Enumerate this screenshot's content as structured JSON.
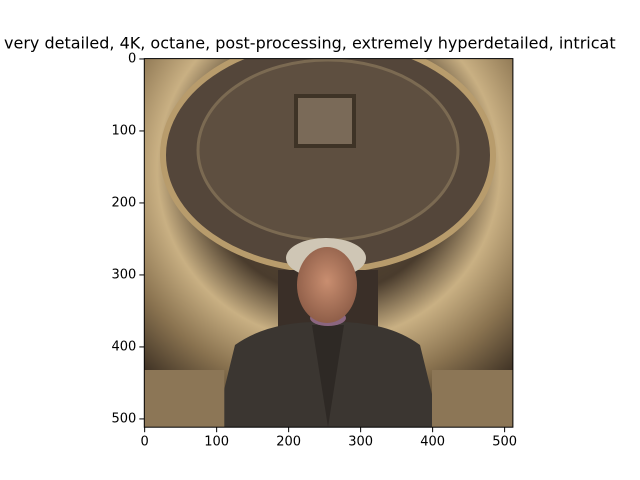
{
  "chart_data": {
    "type": "image",
    "title": "very detailed, 4K, octane, post-processing, extremely hyperdetailed, intricat",
    "xlim": [
      -0.5,
      511.5
    ],
    "ylim": [
      511.5,
      -0.5
    ],
    "xticks": [
      0,
      100,
      200,
      300,
      400,
      500
    ],
    "yticks": [
      0,
      100,
      200,
      300,
      400,
      500
    ]
  }
}
